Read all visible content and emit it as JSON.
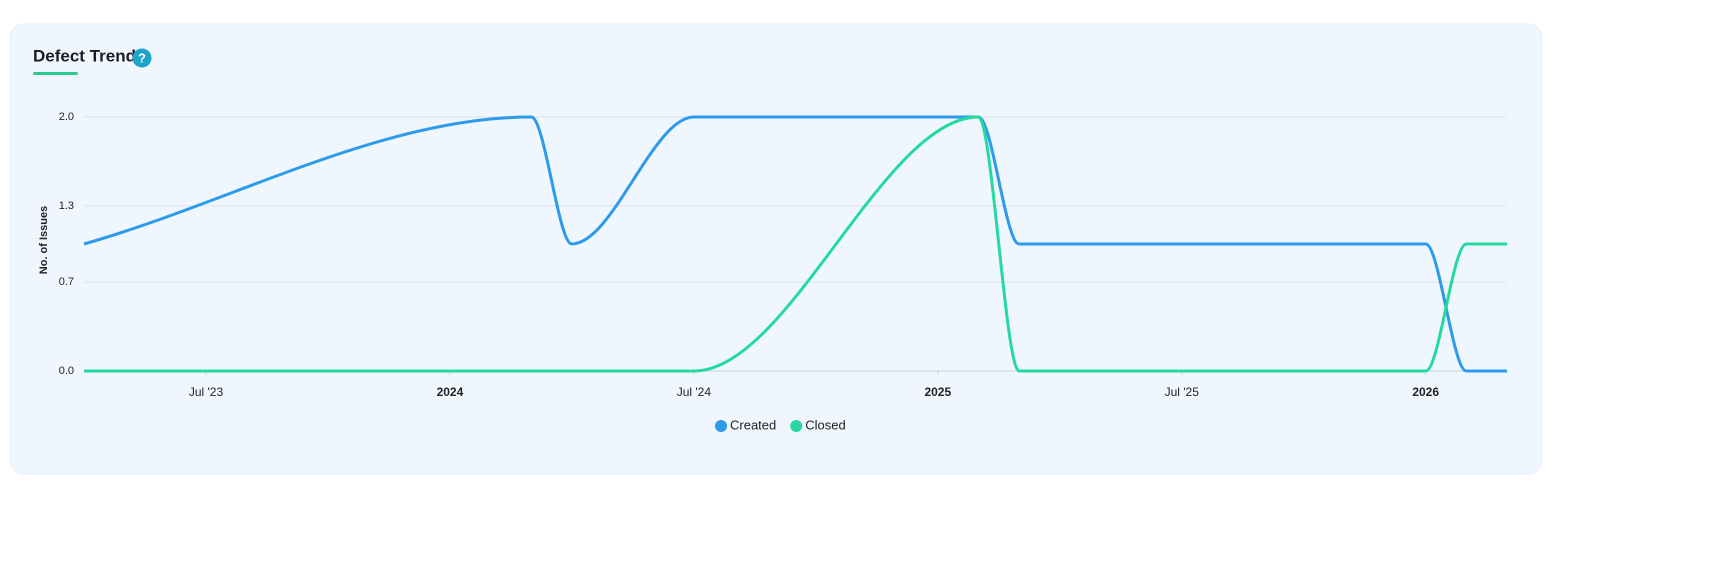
{
  "chart_data": {
    "type": "line",
    "title": "Defect Trend",
    "help_icon": "?",
    "y_label": "No. of Issues",
    "x": [
      "2023-04",
      "2024-03",
      "2024-04",
      "2024-07",
      "2025-02",
      "2025-03",
      "2026-01",
      "2026-02",
      "2026-03"
    ],
    "series": [
      {
        "name": "Created",
        "color": "#2e9bea",
        "values": [
          1,
          2,
          1,
          2,
          2,
          1,
          1,
          0,
          0
        ]
      },
      {
        "name": "Closed",
        "color": "#26d9a0",
        "values": [
          0,
          0,
          0,
          0,
          2,
          0,
          0,
          1,
          1
        ]
      }
    ],
    "ylim": [
      0,
      2
    ],
    "yticks": [
      {
        "value": 0,
        "label": "0.0"
      },
      0.7,
      1.3,
      {
        "value": 2,
        "label": "2.0"
      }
    ],
    "xticks": [
      {
        "value": "2023-07",
        "label": "Jul '23"
      },
      {
        "value": "2024-01",
        "label": "2024"
      },
      {
        "value": "2024-07",
        "label": "Jul '24"
      },
      {
        "value": "2025-01",
        "label": "2025"
      },
      {
        "value": "2025-07",
        "label": "Jul '25"
      },
      {
        "value": "2026-01",
        "label": "2026"
      }
    ],
    "grid": true
  }
}
